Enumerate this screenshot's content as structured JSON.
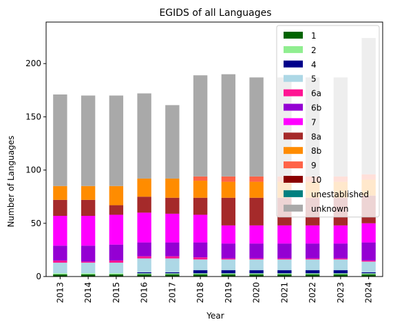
{
  "chart_data": {
    "type": "bar",
    "stacked": true,
    "title": "EGIDS of all Languages",
    "xlabel": "Year",
    "ylabel": "Number of Languages",
    "ylim": [
      0,
      239
    ],
    "yticks": [
      0,
      50,
      100,
      150,
      200
    ],
    "categories": [
      "2013",
      "2014",
      "2015",
      "2016",
      "2017",
      "2018",
      "2019",
      "2020",
      "2021",
      "2022",
      "2023",
      "2024"
    ],
    "legend_position": "top-right",
    "series": [
      {
        "name": "1",
        "color": "#006400",
        "values": [
          2,
          2,
          2,
          2,
          2,
          2,
          2,
          2,
          2,
          2,
          2,
          2
        ]
      },
      {
        "name": "2",
        "color": "#90ee90",
        "values": [
          1,
          1,
          1,
          1,
          1,
          1,
          1,
          1,
          1,
          1,
          1,
          1
        ]
      },
      {
        "name": "4",
        "color": "#00008b",
        "values": [
          0,
          0,
          0,
          1,
          1,
          3,
          3,
          3,
          3,
          3,
          3,
          1
        ]
      },
      {
        "name": "5",
        "color": "#add8e6",
        "values": [
          10,
          10,
          10,
          13,
          13,
          10,
          10,
          10,
          10,
          10,
          10,
          10
        ]
      },
      {
        "name": "6a",
        "color": "#ff1493",
        "values": [
          2,
          1,
          2,
          2,
          2,
          2,
          1,
          1,
          1,
          1,
          1,
          1
        ]
      },
      {
        "name": "6b",
        "color": "#9400d3",
        "values": [
          14,
          15,
          15,
          13,
          13,
          14,
          14,
          14,
          14,
          14,
          14,
          17
        ]
      },
      {
        "name": "7",
        "color": "#ff00ff",
        "values": [
          28,
          28,
          28,
          28,
          27,
          26,
          17,
          17,
          17,
          17,
          17,
          18
        ]
      },
      {
        "name": "8a",
        "color": "#a52a2a",
        "values": [
          15,
          15,
          9,
          15,
          15,
          16,
          26,
          26,
          26,
          26,
          26,
          26
        ]
      },
      {
        "name": "8b",
        "color": "#ff8c00",
        "values": [
          13,
          13,
          18,
          17,
          18,
          16,
          15,
          15,
          15,
          15,
          15,
          15
        ]
      },
      {
        "name": "9",
        "color": "#ff6347",
        "values": [
          0,
          0,
          0,
          0,
          0,
          4,
          5,
          5,
          5,
          5,
          5,
          5
        ]
      },
      {
        "name": "10",
        "color": "#8b0000",
        "values": [
          0,
          0,
          0,
          0,
          0,
          0,
          0,
          0,
          0,
          0,
          0,
          0
        ]
      },
      {
        "name": "unestablished",
        "color": "#008080",
        "values": [
          0,
          0,
          0,
          0,
          0,
          0,
          0,
          0,
          0,
          0,
          0,
          0
        ]
      },
      {
        "name": "unknown",
        "color": "#a9a9a9",
        "values": [
          86,
          85,
          85,
          80,
          69,
          95,
          96,
          93,
          93,
          93,
          93,
          128
        ]
      }
    ]
  }
}
